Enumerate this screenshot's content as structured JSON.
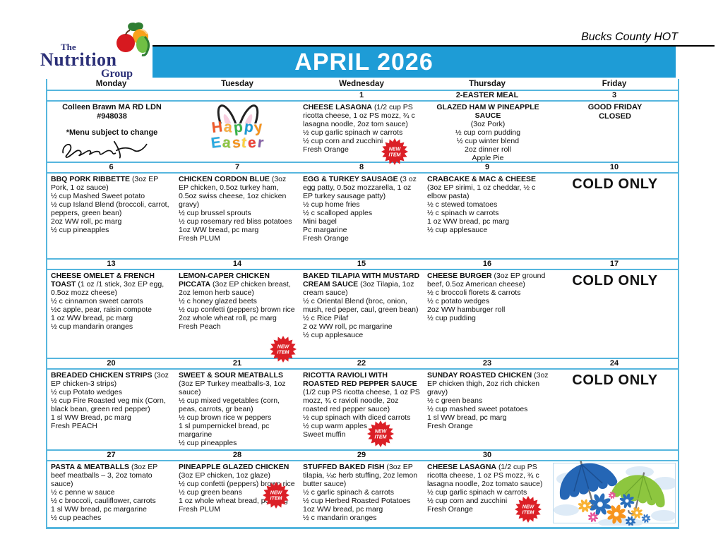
{
  "header": {
    "logo": {
      "the": "The",
      "nutrition": "Nutrition",
      "group": "Group"
    },
    "title": "APRIL 2026",
    "region": "Bucks County HOT"
  },
  "labels": {
    "new_item": [
      "NEW",
      "ITEM"
    ],
    "cold_only": "COLD ONLY"
  },
  "colors": {
    "banner_blue": "#1E9CD6",
    "border_blue": "#56B6DE",
    "new_item_red": "#DB1F26",
    "logo_navy": "#2B2F77"
  },
  "calendar": {
    "day_headers": [
      "Monday",
      "Tuesday",
      "Wednesday",
      "Thursday",
      "Friday"
    ],
    "weeks": [
      {
        "dates": [
          "",
          "",
          "1",
          "2-EASTER MEAL",
          "3"
        ],
        "cells": [
          {
            "type": "note",
            "line1": "Colleen Brawn MA RD LDN",
            "line2": "#948038",
            "line3": "*Menu subject to change"
          },
          {
            "type": "art-easter",
            "line1": "Happy",
            "line2": "Easter"
          },
          {
            "type": "menu",
            "title": "CHEESE LASAGNA",
            "portion": "(1/2 cup PS ricotta cheese, 1 oz PS mozz, ¾ c lasagna noodle, 2oz tom sauce)",
            "items": [
              "½ cup garlic spinach w carrots",
              "½ cup corn and zucchini",
              "Fresh Orange"
            ],
            "new_item": true
          },
          {
            "type": "center-menu",
            "title": "GLAZED HAM W PINEAPPLE SAUCE",
            "items": [
              "(3oz Pork)",
              "½ cup corn pudding",
              "½ cup winter blend",
              "2oz dinner roll",
              "Apple Pie"
            ]
          },
          {
            "type": "closed",
            "line1": "GOOD FRIDAY",
            "line2": "CLOSED"
          }
        ]
      },
      {
        "dates": [
          "6",
          "7",
          "8",
          "9",
          "10"
        ],
        "cells": [
          {
            "type": "menu",
            "title": "BBQ PORK RIBBETTE",
            "portion": "(3oz EP Pork, 1 oz sauce)",
            "items": [
              "½ cup Mashed Sweet potato",
              "½ cup Island Blend (broccoli, carrot, peppers, green bean)",
              "2oz WW roll, pc marg",
              "½ cup pineapples"
            ]
          },
          {
            "type": "menu",
            "title": "CHICKEN CORDON BLUE",
            "portion": "(3oz EP chicken, 0.5oz turkey ham, 0.5oz swiss cheese, 1oz chicken gravy)",
            "items": [
              "½ cup brussel sprouts",
              "½ cup rosemary red bliss potatoes",
              "1oz WW bread, pc marg",
              "Fresh PLUM"
            ]
          },
          {
            "type": "menu",
            "title": "EGG & TURKEY SAUSAGE",
            "portion": "(3 oz egg patty, 0.5oz mozzarella, 1 oz EP turkey sausage patty)",
            "items": [
              "½ cup home fries",
              "½ c scalloped apples",
              "Mini bagel",
              "Pc margarine",
              "Fresh Orange"
            ]
          },
          {
            "type": "menu",
            "title": "CRABCAKE & MAC & CHEESE",
            "portion": "(3oz EP sirimi, 1 oz cheddar, ½ c elbow pasta)",
            "items": [
              "½ c stewed tomatoes",
              "½ c spinach w carrots",
              "1 oz WW bread, pc marg",
              "½ cup applesauce"
            ]
          },
          {
            "type": "cold"
          }
        ]
      },
      {
        "dates": [
          "13",
          "14",
          "15",
          "16",
          "17"
        ],
        "cells": [
          {
            "type": "menu",
            "title": "CHEESE OMELET & FRENCH TOAST",
            "portion": "(1 oz /1 stick, 3oz EP egg, 0.5oz mozz cheese)",
            "items": [
              "½ c cinnamon sweet carrots",
              "½c apple, pear, raisin compote",
              "1 oz WW bread, pc marg",
              "½ cup mandarin oranges"
            ]
          },
          {
            "type": "menu",
            "title": "LEMON-CAPER CHICKEN PICCATA",
            "portion": "(3oz EP chicken breast, 2oz lemon herb sauce)",
            "items": [
              "½ c honey glazed beets",
              "½ cup confetti (peppers) brown rice",
              "2oz whole wheat roll, pc marg",
              "Fresh Peach"
            ],
            "new_item": true
          },
          {
            "type": "menu",
            "title": "BAKED TILAPIA WITH MUSTARD CREAM SAUCE",
            "portion": "(3oz Tilapia, 1oz cream sauce)",
            "items": [
              "½ c Oriental Blend (broc, onion, mush, red peper, caul, green bean)",
              "½ c Rice Pilaf",
              "2 oz WW roll, pc margarine",
              "½ cup applesauce"
            ]
          },
          {
            "type": "menu",
            "title": "CHEESE BURGER",
            "portion": "(3oz EP ground beef, 0.5oz American cheese)",
            "items": [
              "½ c broccoli florets & carrots",
              "½ c potato wedges",
              "2oz WW hamburger roll",
              "½ cup pudding"
            ]
          },
          {
            "type": "cold"
          }
        ]
      },
      {
        "dates": [
          "20",
          "21",
          "22",
          "23",
          "24"
        ],
        "cells": [
          {
            "type": "menu",
            "title": "BREADED CHICKEN STRIPS",
            "portion": "(3oz EP chicken-3 strips)",
            "items": [
              "½ cup Potato wedges",
              "½ cup Fire Roasted veg mix (Corn, black bean, green red pepper)",
              "1 sl WW Bread, pc marg",
              "Fresh PEACH"
            ]
          },
          {
            "type": "menu",
            "title": "SWEET & SOUR MEATBALLS",
            "portion": "(3oz EP Turkey meatballs-3, 1oz sauce)",
            "items": [
              "½ cup mixed vegetables (corn, peas, carrots, gr bean)",
              "½ cup brown rice w peppers",
              "1 sl pumpernickel bread, pc margarine",
              "½ cup pineapples"
            ]
          },
          {
            "type": "menu",
            "title": "RICOTTA RAVIOLI WITH ROASTED RED PEPPER SAUCE",
            "portion": "(1/2 cup PS ricotta cheese, 1 oz PS mozz, ¾ c ravioli noodle, 2oz roasted red pepper sauce)",
            "items": [
              "½ cup spinach with diced carrots",
              "½ cup warm apples",
              "Sweet muffin"
            ],
            "new_item": true
          },
          {
            "type": "menu",
            "title": "SUNDAY ROASTED CHICKEN",
            "portion": "(3oz EP chicken thigh, 2oz rich chicken gravy)",
            "items": [
              "½ c green beans",
              "½ cup mashed sweet potatoes",
              "1 sl WW bread, pc marg",
              "Fresh Orange"
            ]
          },
          {
            "type": "cold"
          }
        ]
      },
      {
        "dates": [
          "27",
          "28",
          "29",
          "30",
          ""
        ],
        "cells": [
          {
            "type": "menu",
            "title": "PASTA & MEATBALLS",
            "portion": "(3oz EP beef meatballs – 3, 2oz tomato sauce)",
            "items": [
              "½ c penne w sauce",
              "½ c broccoli, cauliflower, carrots",
              "1 sl WW bread, pc margarine",
              "½ cup peaches"
            ]
          },
          {
            "type": "menu",
            "title": "PINEAPPLE GLAZED CHICKEN",
            "portion": "(3oz EP chicken, 1oz glaze)",
            "items": [
              "½ cup confetti (peppers) brown rice",
              "½ cup green beans",
              "1 oz whole wheat bread, pc marg",
              "Fresh PLUM"
            ],
            "new_item": true
          },
          {
            "type": "menu",
            "title": "STUFFED BAKED FISH",
            "portion": "(3oz EP tilapia, ¼c herb stuffing, 2oz lemon butter sauce)",
            "items": [
              "½ c garlic spinach & carrots",
              "½ cup Herbed Roasted Potatoes",
              "1oz WW bread, pc marg",
              "½ c mandarin oranges"
            ]
          },
          {
            "type": "menu",
            "title": "CHEESE LASAGNA",
            "portion": "(1/2 cup PS ricotta cheese, 1 oz PS mozz, ¾ c lasagna noodle, 2oz tomato sauce)",
            "items": [
              "½ cup garlic spinach w carrots",
              "½ cup corn and zucchini",
              "Fresh Orange"
            ],
            "new_item": true
          },
          {
            "type": "art-umbrella"
          }
        ]
      }
    ]
  }
}
